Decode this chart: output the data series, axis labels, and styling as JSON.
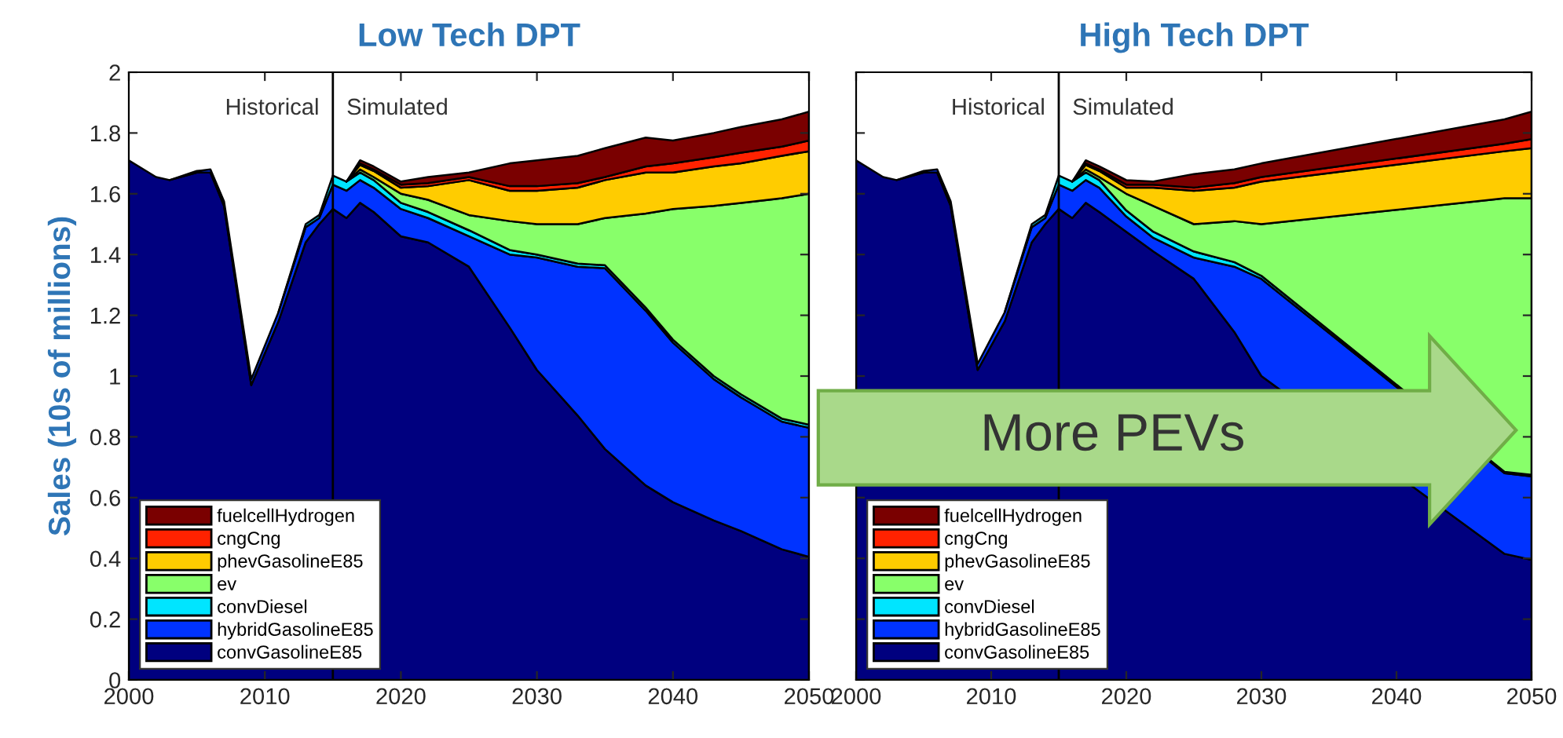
{
  "chart_data": [
    {
      "type": "area",
      "title": "Low Tech DPT",
      "ylabel": "Sales (10s of millions)",
      "stacked": true,
      "legend": "bottom left",
      "x": [
        2000,
        2002,
        2003,
        2005,
        2006,
        2007,
        2009,
        2011,
        2013,
        2014,
        2015,
        2016,
        2017,
        2018,
        2020,
        2022,
        2025,
        2028,
        2030,
        2033,
        2035,
        2038,
        2040,
        2043,
        2045,
        2048,
        2050
      ],
      "xlim": [
        2000,
        2050
      ],
      "xticks": [
        2000,
        2010,
        2020,
        2030,
        2040,
        2050
      ],
      "ylim": [
        0,
        2
      ],
      "yticks": [
        0,
        0.2,
        0.4,
        0.6,
        0.8,
        1,
        1.2,
        1.4,
        1.6,
        1.8,
        2
      ],
      "ref_lines": [
        {
          "axis": "x",
          "value": 2015,
          "color": "#000000"
        }
      ],
      "annotations": [
        "Historical",
        "Simulated"
      ],
      "series": [
        {
          "name": "convGasolineE85",
          "color": "#00007f",
          "values": [
            1.71,
            1.655,
            1.645,
            1.67,
            1.67,
            1.56,
            0.97,
            1.18,
            1.44,
            1.5,
            1.55,
            1.52,
            1.57,
            1.54,
            1.46,
            1.44,
            1.36,
            1.16,
            1.02,
            0.87,
            0.76,
            0.64,
            0.585,
            0.525,
            0.49,
            0.43,
            0.405
          ]
        },
        {
          "name": "hybridGasolineE85",
          "color": "#0033ff",
          "values": [
            null,
            null,
            0,
            0.005,
            0.01,
            0.015,
            0.02,
            0.03,
            0.05,
            0.02,
            0.08,
            0.09,
            0.075,
            0.08,
            0.09,
            0.08,
            0.1,
            0.24,
            0.37,
            0.49,
            0.595,
            0.575,
            0.525,
            0.465,
            0.44,
            0.42,
            0.425
          ]
        },
        {
          "name": "convDiesel",
          "color": "#00e5ff",
          "values": [
            null,
            null,
            null,
            null,
            null,
            null,
            null,
            0,
            0.01,
            0.01,
            0.03,
            0.03,
            0.025,
            0.025,
            0.02,
            0.02,
            0.02,
            0.015,
            0.01,
            0.01,
            0.01,
            0.01,
            0.01,
            0.01,
            0.01,
            0.01,
            0.01
          ]
        },
        {
          "name": "ev",
          "color": "#88ff6a",
          "values": [
            null,
            null,
            null,
            null,
            null,
            null,
            null,
            null,
            null,
            null,
            null,
            0,
            0.01,
            0.01,
            0.03,
            0.04,
            0.05,
            0.095,
            0.1,
            0.13,
            0.155,
            0.31,
            0.43,
            0.56,
            0.63,
            0.725,
            0.76
          ]
        },
        {
          "name": "phevGasolineE85",
          "color": "#ffcc00",
          "values": [
            null,
            null,
            null,
            null,
            null,
            null,
            null,
            null,
            null,
            null,
            null,
            0,
            0.015,
            0.02,
            0.02,
            0.045,
            0.115,
            0.1,
            0.11,
            0.12,
            0.125,
            0.135,
            0.12,
            0.13,
            0.13,
            0.14,
            0.14
          ]
        },
        {
          "name": "cngCng",
          "color": "#ff2200",
          "values": [
            null,
            null,
            null,
            null,
            null,
            null,
            null,
            null,
            null,
            null,
            null,
            0,
            0.005,
            0.005,
            0.01,
            0.01,
            0.01,
            0.015,
            0.015,
            0.015,
            0.01,
            0.02,
            0.03,
            0.03,
            0.035,
            0.03,
            0.035
          ]
        },
        {
          "name": "fuelcellHydrogen",
          "color": "#7a0000",
          "values": [
            null,
            null,
            null,
            null,
            null,
            null,
            null,
            null,
            null,
            null,
            null,
            0,
            0.01,
            0.01,
            0.01,
            0.02,
            0.015,
            0.075,
            0.085,
            0.09,
            0.095,
            0.095,
            0.075,
            0.08,
            0.085,
            0.09,
            0.095
          ]
        }
      ]
    },
    {
      "type": "area",
      "title": "High Tech DPT",
      "stacked": true,
      "legend": "bottom left",
      "tick_labels": "x",
      "x": [
        2000,
        2002,
        2003,
        2005,
        2006,
        2007,
        2009,
        2011,
        2013,
        2014,
        2015,
        2016,
        2017,
        2018,
        2020,
        2022,
        2025,
        2028,
        2030,
        2048,
        2050
      ],
      "xlim": [
        2000,
        2050
      ],
      "xticks": [
        2000,
        2010,
        2020,
        2030,
        2040,
        2050
      ],
      "ylim": [
        0,
        2
      ],
      "yticks": [
        0,
        0.2,
        0.4,
        0.6,
        0.8,
        1,
        1.2,
        1.4,
        1.6,
        1.8,
        2
      ],
      "ref_lines": [
        {
          "axis": "x",
          "value": 2015,
          "color": "#000000"
        }
      ],
      "annotations": [
        "Historical",
        "Simulated",
        "More PEVs"
      ],
      "series": [
        {
          "name": "convGasolineE85",
          "color": "#00007f",
          "values": [
            1.71,
            1.655,
            1.645,
            1.67,
            1.67,
            1.56,
            1.02,
            1.18,
            1.44,
            1.5,
            1.55,
            1.52,
            1.57,
            1.54,
            1.475,
            1.41,
            1.32,
            1.145,
            1.0,
            0.415,
            0.395
          ]
        },
        {
          "name": "hybridGasolineE85",
          "color": "#0033ff",
          "values": [
            null,
            null,
            0,
            0.005,
            0.01,
            0.015,
            0.02,
            0.03,
            0.05,
            0.02,
            0.08,
            0.09,
            0.075,
            0.08,
            0.05,
            0.045,
            0.07,
            0.215,
            0.32,
            0.265,
            0.275
          ]
        },
        {
          "name": "convDiesel",
          "color": "#00e5ff",
          "values": [
            null,
            null,
            null,
            null,
            null,
            null,
            null,
            0,
            0.01,
            0.01,
            0.03,
            0.03,
            0.025,
            0.025,
            0.02,
            0.02,
            0.02,
            0.015,
            0.01,
            0.005,
            0.005
          ]
        },
        {
          "name": "ev",
          "color": "#88ff6a",
          "values": [
            null,
            null,
            null,
            null,
            null,
            null,
            null,
            null,
            null,
            null,
            null,
            0,
            0.01,
            0.01,
            0.055,
            0.085,
            0.09,
            0.135,
            0.17,
            0.9,
            0.91
          ]
        },
        {
          "name": "phevGasolineE85",
          "color": "#ffcc00",
          "values": [
            null,
            null,
            null,
            null,
            null,
            null,
            null,
            null,
            null,
            null,
            null,
            0,
            0.015,
            0.02,
            0.02,
            0.06,
            0.11,
            0.11,
            0.14,
            0.155,
            0.165
          ]
        },
        {
          "name": "cngCng",
          "color": "#ff2200",
          "values": [
            null,
            null,
            null,
            null,
            null,
            null,
            null,
            null,
            null,
            null,
            null,
            0,
            0.005,
            0.005,
            0.01,
            0.01,
            0.01,
            0.015,
            0.015,
            0.025,
            0.03
          ]
        },
        {
          "name": "fuelcellHydrogen",
          "color": "#7a0000",
          "values": [
            null,
            null,
            null,
            null,
            null,
            null,
            null,
            null,
            null,
            null,
            null,
            0,
            0.01,
            0.01,
            0.015,
            0.01,
            0.045,
            0.045,
            0.045,
            0.08,
            0.09
          ]
        }
      ]
    }
  ]
}
